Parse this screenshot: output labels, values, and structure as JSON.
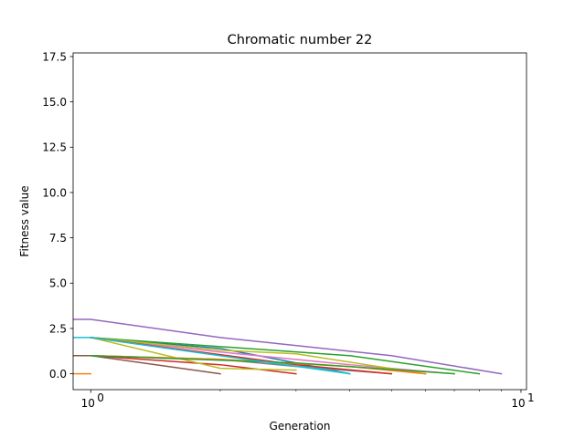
{
  "chart_data": {
    "type": "line",
    "title": "Chromatic number 22",
    "xlabel": "Generation",
    "ylabel": "Fitness value",
    "xscale": "log",
    "xlim": [
      0.91,
      10.3
    ],
    "ylim": [
      -0.875,
      17.7
    ],
    "yticks": [
      "0.0",
      "2.5",
      "5.0",
      "7.5",
      "10.0",
      "12.5",
      "15.0",
      "17.5"
    ],
    "xticks": [
      {
        "value": 1,
        "base": "10",
        "exp": "0"
      },
      {
        "value": 10,
        "base": "10",
        "exp": "1"
      }
    ],
    "grid": false,
    "series": [
      {
        "color": "#1f77b4",
        "x": [
          1,
          2,
          3,
          4
        ],
        "y": [
          2,
          1.4,
          0.6,
          0
        ]
      },
      {
        "color": "#ff7f0e",
        "x": [
          0.9,
          1
        ],
        "y": [
          0,
          0
        ]
      },
      {
        "color": "#2ca02c",
        "x": [
          1,
          2,
          4,
          8
        ],
        "y": [
          2,
          1.5,
          1,
          0
        ]
      },
      {
        "color": "#d62728",
        "x": [
          1,
          2,
          3
        ],
        "y": [
          1,
          0.5,
          0
        ]
      },
      {
        "color": "#9467bd",
        "x": [
          0.9,
          1,
          2,
          5,
          9
        ],
        "y": [
          3,
          3,
          2,
          1,
          0
        ]
      },
      {
        "color": "#8c564b",
        "x": [
          0.9,
          1,
          2
        ],
        "y": [
          1,
          1,
          0
        ]
      },
      {
        "color": "#e377c2",
        "x": [
          1,
          2,
          4,
          7
        ],
        "y": [
          2,
          1.2,
          0.5,
          0
        ]
      },
      {
        "color": "#7f7f7f",
        "x": [
          1,
          2,
          3,
          5
        ],
        "y": [
          1,
          0.8,
          0.4,
          0
        ]
      },
      {
        "color": "#bcbd22",
        "x": [
          1,
          2,
          3,
          6
        ],
        "y": [
          2,
          1.3,
          1.1,
          0
        ]
      },
      {
        "color": "#17becf",
        "x": [
          1,
          2,
          3,
          4
        ],
        "y": [
          2,
          1,
          0.5,
          0
        ]
      },
      {
        "color": "#bcbd22",
        "x": [
          1,
          2,
          3
        ],
        "y": [
          2,
          0.3,
          0.2
        ]
      },
      {
        "color": "#d62728",
        "x": [
          1,
          3,
          5
        ],
        "y": [
          2,
          0.5,
          0
        ]
      },
      {
        "color": "#ff7f0e",
        "x": [
          1,
          2,
          4,
          6
        ],
        "y": [
          1,
          0.8,
          0.4,
          0
        ]
      },
      {
        "color": "#2ca02c",
        "x": [
          1,
          3,
          7
        ],
        "y": [
          1,
          0.6,
          0
        ]
      },
      {
        "color": "#17becf",
        "x": [
          0.9,
          1,
          2,
          4
        ],
        "y": [
          2,
          2,
          1,
          0
        ]
      }
    ]
  }
}
